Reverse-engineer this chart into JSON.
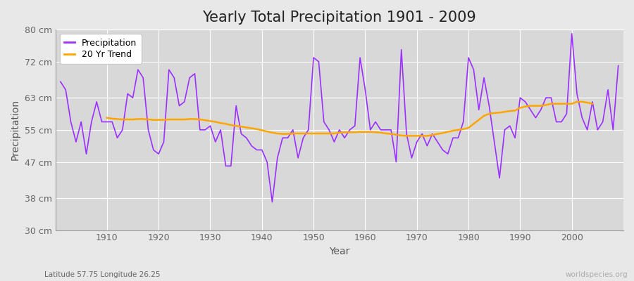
{
  "title": "Yearly Total Precipitation 1901 - 2009",
  "xlabel": "Year",
  "ylabel": "Precipitation",
  "subtitle": "Latitude 57.75 Longitude 26.25",
  "watermark": "worldspecies.org",
  "years": [
    1901,
    1902,
    1903,
    1904,
    1905,
    1906,
    1907,
    1908,
    1909,
    1910,
    1911,
    1912,
    1913,
    1914,
    1915,
    1916,
    1917,
    1918,
    1919,
    1920,
    1921,
    1922,
    1923,
    1924,
    1925,
    1926,
    1927,
    1928,
    1929,
    1930,
    1931,
    1932,
    1933,
    1934,
    1935,
    1936,
    1937,
    1938,
    1939,
    1940,
    1941,
    1942,
    1943,
    1944,
    1945,
    1946,
    1947,
    1948,
    1949,
    1950,
    1951,
    1952,
    1953,
    1954,
    1955,
    1956,
    1957,
    1958,
    1959,
    1960,
    1961,
    1962,
    1963,
    1964,
    1965,
    1966,
    1967,
    1968,
    1969,
    1970,
    1971,
    1972,
    1973,
    1974,
    1975,
    1976,
    1977,
    1978,
    1979,
    1980,
    1981,
    1982,
    1983,
    1984,
    1985,
    1986,
    1987,
    1988,
    1989,
    1990,
    1991,
    1992,
    1993,
    1994,
    1995,
    1996,
    1997,
    1998,
    1999,
    2000,
    2001,
    2002,
    2003,
    2004,
    2005,
    2006,
    2007,
    2008,
    2009
  ],
  "precipitation": [
    67,
    65,
    57,
    52,
    57,
    49,
    57,
    62,
    57,
    57,
    57,
    53,
    55,
    64,
    63,
    70,
    68,
    55,
    50,
    49,
    52,
    70,
    68,
    61,
    62,
    68,
    69,
    55,
    55,
    56,
    52,
    55,
    46,
    46,
    61,
    54,
    53,
    51,
    50,
    50,
    47,
    37,
    48,
    53,
    53,
    55,
    48,
    53,
    55,
    73,
    72,
    57,
    55,
    52,
    55,
    53,
    55,
    56,
    73,
    65,
    55,
    57,
    55,
    55,
    55,
    47,
    75,
    54,
    48,
    52,
    54,
    51,
    54,
    52,
    50,
    49,
    53,
    53,
    57,
    73,
    70,
    60,
    68,
    61,
    52,
    43,
    55,
    56,
    53,
    63,
    62,
    60,
    58,
    60,
    63,
    63,
    57,
    57,
    59,
    79,
    64,
    58,
    55,
    62,
    55,
    57,
    65,
    55,
    71
  ],
  "trend": [
    null,
    null,
    null,
    null,
    null,
    null,
    null,
    null,
    null,
    58,
    57.8,
    57.7,
    57.6,
    57.6,
    57.6,
    57.7,
    57.7,
    57.6,
    57.5,
    57.5,
    57.5,
    57.6,
    57.6,
    57.6,
    57.6,
    57.7,
    57.7,
    57.6,
    57.4,
    57.2,
    57.0,
    56.7,
    56.5,
    56.2,
    56.0,
    55.8,
    55.6,
    55.4,
    55.2,
    54.9,
    54.6,
    54.3,
    54.1,
    54.0,
    54.0,
    54.1,
    54.1,
    54.1,
    54.1,
    54.1,
    54.1,
    54.1,
    54.1,
    54.1,
    54.3,
    54.4,
    54.4,
    54.4,
    54.5,
    54.5,
    54.5,
    54.4,
    54.3,
    54.1,
    54.0,
    53.8,
    53.6,
    53.5,
    53.5,
    53.5,
    53.5,
    53.5,
    53.7,
    54.0,
    54.2,
    54.5,
    54.8,
    55.0,
    55.2,
    55.5,
    56.5,
    57.5,
    58.5,
    59.0,
    59.2,
    59.3,
    59.5,
    59.7,
    59.8,
    60.5,
    60.8,
    61.0,
    61.0,
    61.0,
    61.2,
    61.5,
    61.5,
    61.5,
    61.5,
    61.5,
    62.0,
    62.0,
    61.8,
    61.5,
    null,
    null,
    null,
    null,
    null
  ],
  "ylim": [
    30,
    80
  ],
  "yticks": [
    30,
    38,
    47,
    55,
    63,
    72,
    80
  ],
  "ytick_labels": [
    "30 cm",
    "38 cm",
    "47 cm",
    "55 cm",
    "63 cm",
    "72 cm",
    "80 cm"
  ],
  "xticks": [
    1910,
    1920,
    1930,
    1940,
    1950,
    1960,
    1970,
    1980,
    1990,
    2000
  ],
  "xlim_left": 1900,
  "xlim_right": 2010,
  "precipitation_color": "#9B30FF",
  "trend_color": "#FFA500",
  "bg_color": "#E8E8E8",
  "plot_bg_color": "#D8D8D8",
  "grid_color": "#FFFFFF",
  "title_fontsize": 15,
  "axis_label_fontsize": 10,
  "tick_fontsize": 9,
  "legend_fontsize": 9
}
